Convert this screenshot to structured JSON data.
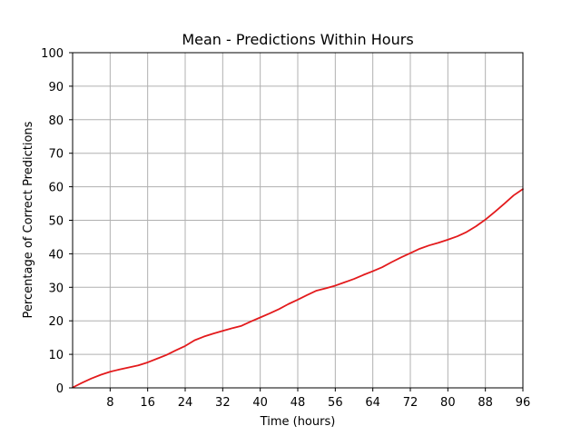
{
  "chart_data": {
    "type": "line",
    "title": "Mean - Predictions Within Hours",
    "xlabel": "Time (hours)",
    "ylabel": "Percentage of Correct Predictions",
    "xlim": [
      0,
      96
    ],
    "ylim": [
      0,
      100
    ],
    "xticks": [
      8,
      16,
      24,
      32,
      40,
      48,
      56,
      64,
      72,
      80,
      88,
      96
    ],
    "xtick_labels": [
      "8",
      "16",
      "24",
      "32",
      "40",
      "48",
      "56",
      "64",
      "72",
      "80",
      "88",
      "96"
    ],
    "yticks": [
      0,
      10,
      20,
      30,
      40,
      50,
      60,
      70,
      80,
      90,
      100
    ],
    "ytick_labels": [
      "0",
      "10",
      "20",
      "30",
      "40",
      "50",
      "60",
      "70",
      "80",
      "90",
      "100"
    ],
    "grid": true,
    "series": [
      {
        "color": "#e31a1c",
        "x": [
          0,
          2,
          4,
          6,
          8,
          10,
          12,
          14,
          16,
          18,
          20,
          22,
          24,
          26,
          28,
          30,
          32,
          34,
          36,
          38,
          40,
          42,
          44,
          46,
          48,
          50,
          52,
          54,
          56,
          58,
          60,
          62,
          64,
          66,
          68,
          70,
          72,
          74,
          76,
          78,
          80,
          82,
          84,
          86,
          88,
          90,
          92,
          94,
          96
        ],
        "y": [
          0.1,
          1.5,
          2.8,
          3.9,
          4.8,
          5.5,
          6.1,
          6.7,
          7.6,
          8.7,
          9.8,
          11.2,
          12.5,
          14.2,
          15.3,
          16.2,
          17.0,
          17.8,
          18.5,
          19.8,
          21.0,
          22.2,
          23.5,
          25.0,
          26.3,
          27.7,
          29.0,
          29.7,
          30.5,
          31.5,
          32.5,
          33.7,
          34.8,
          36.0,
          37.5,
          38.9,
          40.2,
          41.5,
          42.5,
          43.3,
          44.2,
          45.2,
          46.5,
          48.2,
          50.2,
          52.5,
          54.9,
          57.4,
          59.3
        ]
      }
    ]
  }
}
